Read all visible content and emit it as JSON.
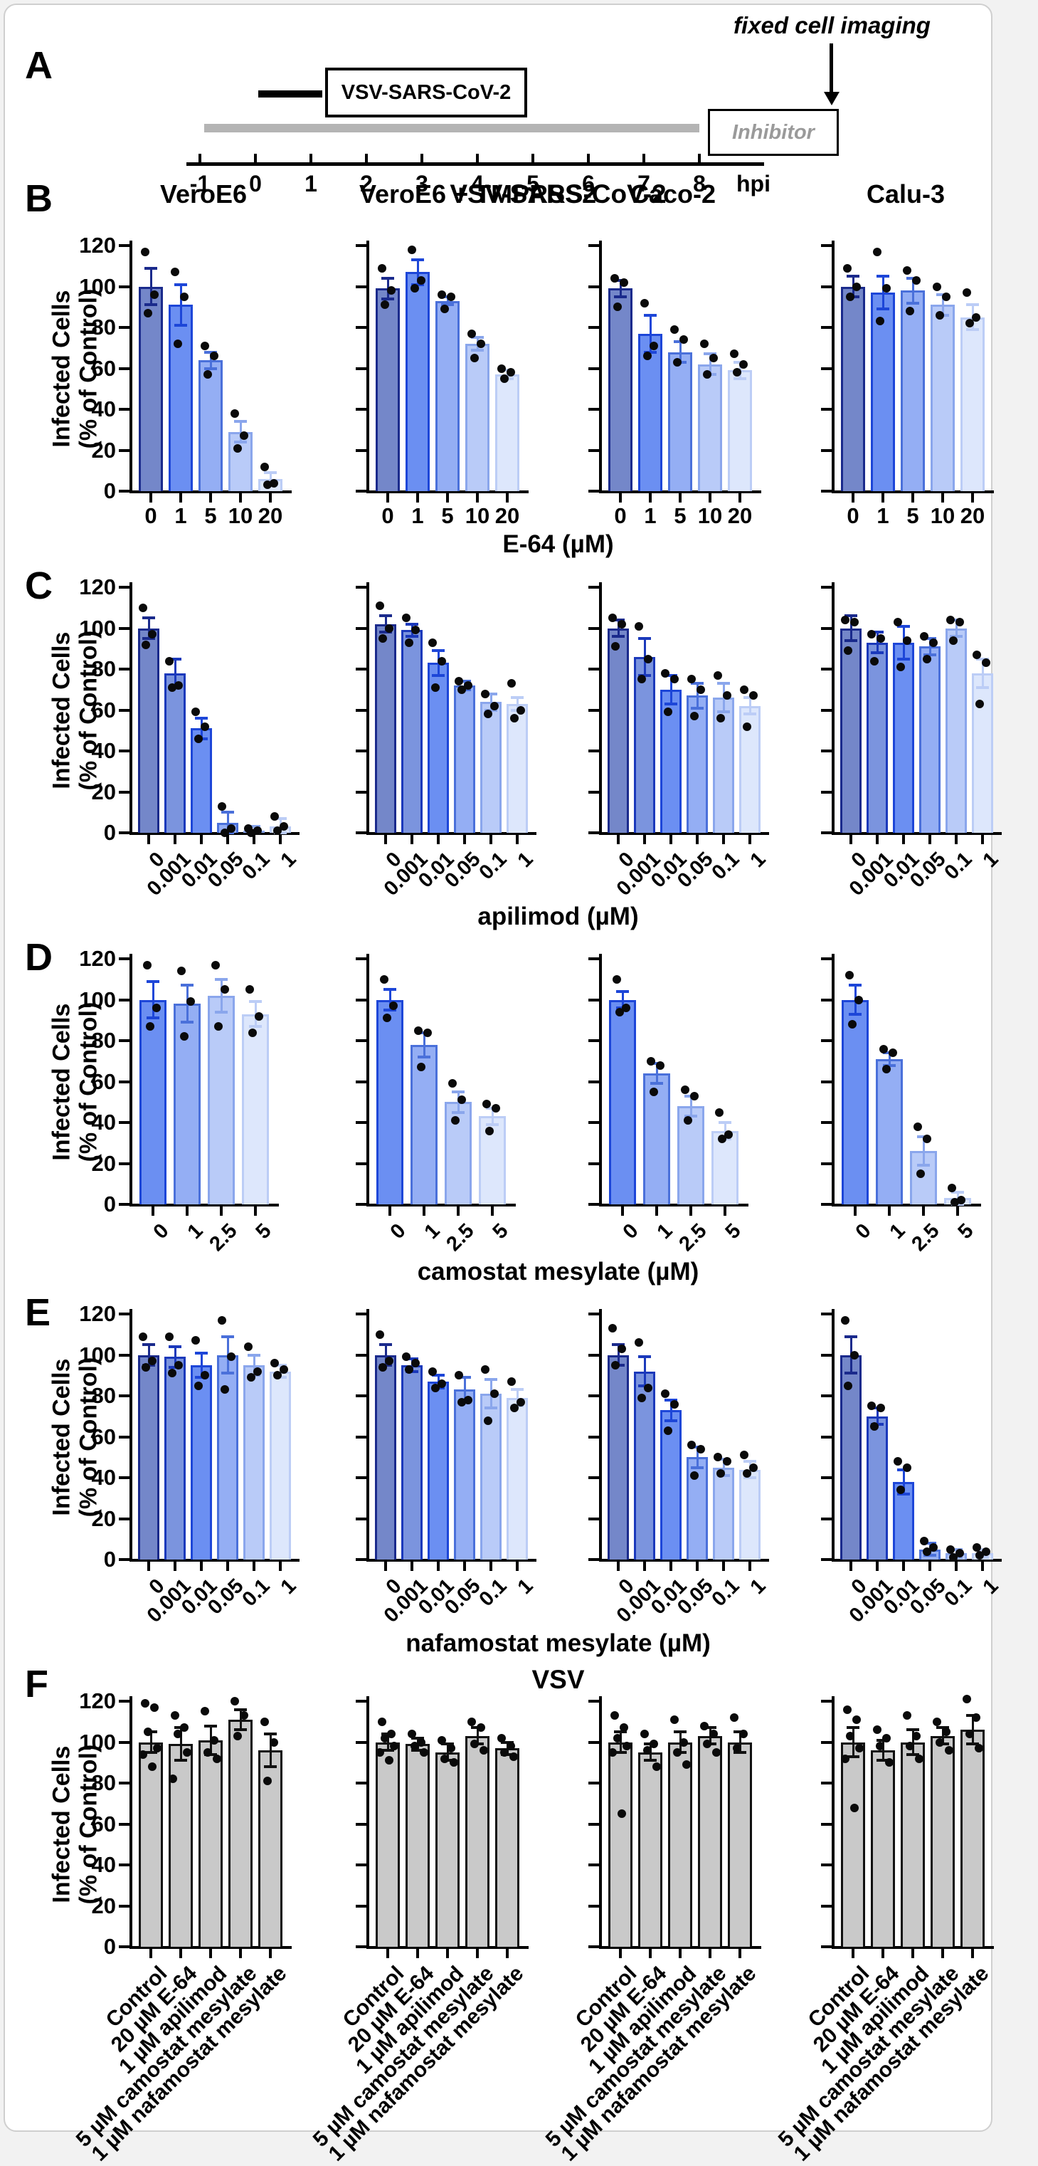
{
  "figure": {
    "y_axis_label_line1": "Infected Cells",
    "y_axis_label_line2": "(% of Control)",
    "y_ticks": [
      0,
      20,
      40,
      60,
      80,
      100,
      120
    ]
  },
  "panel_a": {
    "letter": "A",
    "annotation": "fixed cell imaging",
    "virus_label": "VSV-SARS-CoV-2",
    "inhibitor_label": "Inhibitor",
    "axis_unit": "hpi",
    "ticks": [
      "-1",
      "0",
      "1",
      "2",
      "3",
      "4",
      "5",
      "6",
      "7",
      "8"
    ]
  },
  "chart_data": [
    {
      "panel": "B",
      "type": "bar",
      "title": "VSV-SARS-CoV-2",
      "xlabel": "E-64 (µM)",
      "ylabel": "Infected Cells (% of Control)",
      "ylim": [
        0,
        120
      ],
      "show_column_titles": true,
      "rotate_ticks": false,
      "categories": [
        "0",
        "1",
        "5",
        "10",
        "20"
      ],
      "bar_colors": [
        "#7487c9",
        "#6b8ff2",
        "#94aef4",
        "#b9cbf8",
        "#dde7fc"
      ],
      "bar_borders": [
        "#1a2a8c",
        "#1d46d8",
        "#4a70da",
        "#8aa6ec",
        "#bccdf6"
      ],
      "series": [
        {
          "name": "VeroE6",
          "values": [
            100,
            91,
            64,
            29,
            6
          ],
          "err": [
            9,
            10,
            4,
            5,
            3
          ],
          "points": [
            [
              117,
              96,
              87
            ],
            [
              107,
              95,
              72
            ],
            [
              71,
              66,
              57
            ],
            [
              38,
              27,
              21
            ],
            [
              12,
              4,
              3
            ]
          ]
        },
        {
          "name": "VeroE6 + TMPRSS2",
          "values": [
            99,
            107,
            93,
            72,
            57
          ],
          "err": [
            5,
            6,
            2,
            3,
            2
          ],
          "points": [
            [
              109,
              98,
              91
            ],
            [
              118,
              103,
              99
            ],
            [
              96,
              95,
              89
            ],
            [
              77,
              72,
              65
            ],
            [
              60,
              58,
              55
            ]
          ]
        },
        {
          "name": "Caco-2",
          "values": [
            99,
            77,
            68,
            62,
            59
          ],
          "err": [
            4,
            9,
            5,
            5,
            4
          ],
          "points": [
            [
              104,
              102,
              90
            ],
            [
              92,
              71,
              66
            ],
            [
              79,
              74,
              63
            ],
            [
              72,
              65,
              57
            ],
            [
              67,
              62,
              58
            ]
          ]
        },
        {
          "name": "Calu-3",
          "values": [
            100,
            97,
            98,
            91,
            85
          ],
          "err": [
            5,
            8,
            6,
            5,
            6
          ],
          "points": [
            [
              109,
              100,
              95
            ],
            [
              117,
              99,
              83
            ],
            [
              108,
              103,
              88
            ],
            [
              100,
              95,
              86
            ],
            [
              97,
              85,
              82
            ]
          ]
        }
      ]
    },
    {
      "panel": "C",
      "type": "bar",
      "title": "",
      "xlabel": "apilimod (µM)",
      "ylabel": "Infected Cells (% of Control)",
      "ylim": [
        0,
        120
      ],
      "show_column_titles": false,
      "rotate_ticks": true,
      "categories": [
        "0",
        "0.001",
        "0.01",
        "0.05",
        "0.1",
        "1"
      ],
      "bar_colors": [
        "#7487c9",
        "#7b94de",
        "#6b8ff2",
        "#94aef4",
        "#b9cbf8",
        "#dde7fc"
      ],
      "bar_borders": [
        "#1a2a8c",
        "#1b39bb",
        "#1d46d8",
        "#4a70da",
        "#8aa6ec",
        "#bccdf6"
      ],
      "series": [
        {
          "name": "VeroE6",
          "values": [
            100,
            78,
            51,
            5,
            1,
            3
          ],
          "err": [
            5,
            7,
            5,
            5,
            2,
            4
          ],
          "points": [
            [
              110,
              97,
              92
            ],
            [
              84,
              72,
              71
            ],
            [
              59,
              52,
              46
            ],
            [
              13,
              2,
              0
            ],
            [
              2,
              1,
              0
            ],
            [
              8,
              3,
              1
            ]
          ]
        },
        {
          "name": "VeroE6 + TMPRSS2",
          "values": [
            102,
            99,
            83,
            72,
            64,
            63
          ],
          "err": [
            4,
            3,
            6,
            2,
            4,
            3
          ],
          "points": [
            [
              111,
              100,
              95
            ],
            [
              105,
              99,
              93
            ],
            [
              93,
              84,
              71
            ],
            [
              74,
              72,
              70
            ],
            [
              68,
              62,
              58
            ],
            [
              73,
              60,
              56
            ]
          ]
        },
        {
          "name": "Caco-2",
          "values": [
            100,
            86,
            70,
            67,
            66,
            62
          ],
          "err": [
            4,
            9,
            7,
            6,
            7,
            4
          ],
          "points": [
            [
              105,
              102,
              91
            ],
            [
              101,
              85,
              75
            ],
            [
              78,
              75,
              59
            ],
            [
              75,
              70,
              57
            ],
            [
              77,
              67,
              56
            ],
            [
              70,
              67,
              52
            ]
          ]
        },
        {
          "name": "Calu-3",
          "values": [
            100,
            93,
            93,
            91,
            100,
            78
          ],
          "err": [
            6,
            5,
            8,
            4,
            4,
            7
          ],
          "points": [
            [
              104,
              103,
              89
            ],
            [
              97,
              95,
              84
            ],
            [
              103,
              94,
              81
            ],
            [
              96,
              93,
              85
            ],
            [
              104,
              103,
              94
            ],
            [
              87,
              83,
              63
            ]
          ]
        }
      ]
    },
    {
      "panel": "D",
      "type": "bar",
      "title": "",
      "xlabel": "camostat mesylate (µM)",
      "ylabel": "Infected Cells (% of Control)",
      "ylim": [
        0,
        120
      ],
      "show_column_titles": false,
      "rotate_ticks": true,
      "categories": [
        "0",
        "1",
        "2.5",
        "5"
      ],
      "bar_colors": [
        "#6b8ff2",
        "#94aef4",
        "#b9cbf8",
        "#dde7fc"
      ],
      "bar_borders": [
        "#1d46d8",
        "#4a70da",
        "#8aa6ec",
        "#bccdf6"
      ],
      "series": [
        {
          "name": "VeroE6",
          "values": [
            100,
            98,
            102,
            93
          ],
          "err": [
            9,
            9,
            8,
            6
          ],
          "points": [
            [
              117,
              96,
              87
            ],
            [
              114,
              99,
              82
            ],
            [
              117,
              105,
              87
            ],
            [
              105,
              92,
              84
            ]
          ]
        },
        {
          "name": "VeroE6 + TMPRSS2",
          "values": [
            100,
            78,
            50,
            43
          ],
          "err": [
            5,
            6,
            5,
            4
          ],
          "points": [
            [
              110,
              97,
              91
            ],
            [
              85,
              84,
              67
            ],
            [
              59,
              51,
              41
            ],
            [
              49,
              47,
              36
            ]
          ]
        },
        {
          "name": "Caco-2",
          "values": [
            100,
            64,
            48,
            36
          ],
          "err": [
            4,
            5,
            5,
            4
          ],
          "points": [
            [
              110,
              96,
              94
            ],
            [
              70,
              68,
              55
            ],
            [
              56,
              53,
              41
            ],
            [
              45,
              34,
              32
            ]
          ]
        },
        {
          "name": "Calu-3",
          "values": [
            100,
            71,
            26,
            3
          ],
          "err": [
            7,
            3,
            7,
            3
          ],
          "points": [
            [
              112,
              100,
              88
            ],
            [
              76,
              74,
              66
            ],
            [
              38,
              32,
              15
            ],
            [
              8,
              2,
              1
            ]
          ]
        }
      ]
    },
    {
      "panel": "E",
      "type": "bar",
      "title": "",
      "xlabel": "nafamostat mesylate (µM)",
      "ylabel": "Infected Cells (% of Control)",
      "ylim": [
        0,
        120
      ],
      "show_column_titles": false,
      "rotate_ticks": true,
      "categories": [
        "0",
        "0.001",
        "0.01",
        "0.05",
        "0.1",
        "1"
      ],
      "bar_colors": [
        "#7487c9",
        "#7b94de",
        "#6b8ff2",
        "#94aef4",
        "#b9cbf8",
        "#dde7fc"
      ],
      "bar_borders": [
        "#1a2a8c",
        "#1b39bb",
        "#1d46d8",
        "#4a70da",
        "#8aa6ec",
        "#bccdf6"
      ],
      "series": [
        {
          "name": "VeroE6",
          "values": [
            100,
            99,
            95,
            100,
            95,
            92
          ],
          "err": [
            5,
            5,
            6,
            9,
            5,
            3
          ],
          "points": [
            [
              109,
              97,
              94
            ],
            [
              109,
              95,
              91
            ],
            [
              107,
              90,
              85
            ],
            [
              117,
              99,
              83
            ],
            [
              104,
              92,
              89
            ],
            [
              96,
              93,
              90
            ]
          ]
        },
        {
          "name": "VeroE6 + TMPRSS2",
          "values": [
            100,
            95,
            87,
            83,
            81,
            79
          ],
          "err": [
            5,
            3,
            3,
            6,
            7,
            4
          ],
          "points": [
            [
              110,
              97,
              94
            ],
            [
              99,
              96,
              93
            ],
            [
              92,
              86,
              84
            ],
            [
              90,
              78,
              77
            ],
            [
              93,
              81,
              68
            ],
            [
              87,
              77,
              74
            ]
          ]
        },
        {
          "name": "Caco-2",
          "values": [
            100,
            92,
            73,
            50,
            45,
            44
          ],
          "err": [
            5,
            7,
            5,
            5,
            4,
            4
          ],
          "points": [
            [
              113,
              103,
              95
            ],
            [
              106,
              84,
              79
            ],
            [
              81,
              76,
              63
            ],
            [
              56,
              54,
              41
            ],
            [
              50,
              48,
              42
            ],
            [
              51,
              45,
              42
            ]
          ]
        },
        {
          "name": "Calu-3",
          "values": [
            100,
            70,
            38,
            5,
            3,
            3
          ],
          "err": [
            9,
            4,
            6,
            3,
            2,
            2
          ],
          "points": [
            [
              117,
              100,
              85
            ],
            [
              75,
              74,
              65
            ],
            [
              48,
              45,
              34
            ],
            [
              9,
              6,
              4
            ],
            [
              5,
              3,
              1
            ],
            [
              6,
              4,
              2
            ]
          ]
        }
      ]
    },
    {
      "panel": "F",
      "type": "bar",
      "title": "VSV",
      "xlabel": "",
      "ylabel": "Infected Cells (% of Control)",
      "ylim": [
        0,
        120
      ],
      "show_column_titles": false,
      "rotate_ticks": true,
      "categories": [
        "Control",
        "20 µM E-64",
        "1 µM apilimod",
        "5 µM camostat mesylate",
        "1 µM nafamostat mesylate"
      ],
      "bar_colors": [
        "#c9c9c9",
        "#c9c9c9",
        "#c9c9c9",
        "#c9c9c9",
        "#c9c9c9"
      ],
      "bar_borders": [
        "#111111",
        "#111111",
        "#111111",
        "#111111",
        "#111111"
      ],
      "series": [
        {
          "name": "VeroE6",
          "values": [
            100,
            99,
            101,
            111,
            96
          ],
          "err": [
            5,
            8,
            7,
            5,
            8
          ],
          "points": [
            [
              119,
              117,
              105,
              97,
              94,
              88
            ],
            [
              113,
              107,
              104,
              95,
              82
            ],
            [
              115,
              101,
              95,
              92
            ],
            [
              120,
              113,
              103
            ],
            [
              110,
              100,
              81
            ]
          ]
        },
        {
          "name": "VeroE6 + TMPRSS2",
          "values": [
            100,
            99,
            95,
            103,
            97
          ],
          "err": [
            4,
            3,
            4,
            4,
            3
          ],
          "points": [
            [
              110,
              104,
              102,
              98,
              95,
              91
            ],
            [
              104,
              100,
              98,
              95
            ],
            [
              101,
              97,
              92,
              90
            ],
            [
              110,
              107,
              99,
              96
            ],
            [
              102,
              98,
              95,
              93
            ]
          ]
        },
        {
          "name": "Caco-2",
          "values": [
            100,
            95,
            100,
            103,
            100
          ],
          "err": [
            5,
            4,
            5,
            4,
            5
          ],
          "points": [
            [
              113,
              107,
              102,
              98,
              95,
              65
            ],
            [
              104,
              99,
              96,
              88
            ],
            [
              111,
              100,
              95,
              89
            ],
            [
              108,
              104,
              99,
              95
            ],
            [
              112,
              104,
              97
            ]
          ]
        },
        {
          "name": "Calu-3",
          "values": [
            100,
            96,
            100,
            103,
            106
          ],
          "err": [
            7,
            5,
            6,
            4,
            7
          ],
          "points": [
            [
              116,
              111,
              103,
              97,
              92,
              68
            ],
            [
              106,
              102,
              98,
              90
            ],
            [
              113,
              103,
              98,
              92
            ],
            [
              110,
              105,
              100,
              96
            ],
            [
              121,
              112,
              104,
              97
            ]
          ]
        }
      ]
    }
  ]
}
